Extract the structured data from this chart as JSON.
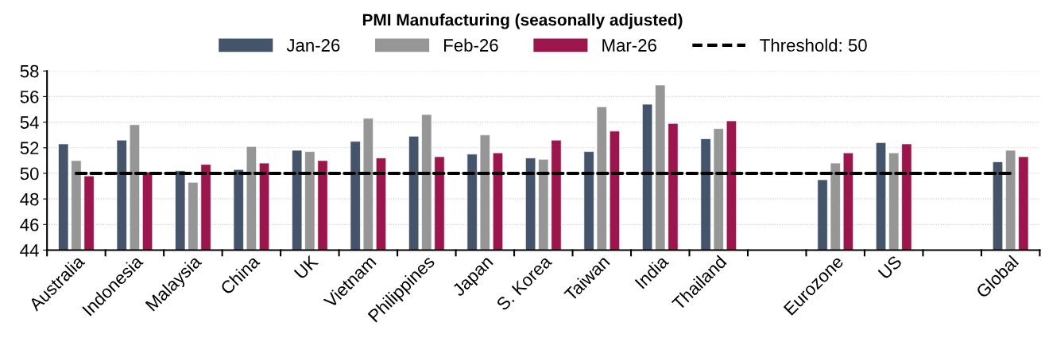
{
  "chart_data": {
    "type": "bar",
    "title": "PMI Manufacturing (seasonally adjusted)",
    "categories": [
      "Australia",
      "Indonesia",
      "Malaysia",
      "China",
      "UK",
      "Vietnam",
      "Philippines",
      "Japan",
      "S. Korea",
      "Taiwan",
      "India",
      "Thailand",
      null,
      "Eurozone",
      "US",
      null,
      "Global"
    ],
    "series": [
      {
        "name": "Jan-26",
        "color": "#44546a",
        "values": [
          52.3,
          52.6,
          50.2,
          50.3,
          51.8,
          52.5,
          52.9,
          51.5,
          51.2,
          51.7,
          55.4,
          52.7,
          null,
          49.5,
          52.4,
          null,
          50.9
        ]
      },
      {
        "name": "Feb-26",
        "color": "#969696",
        "values": [
          51.0,
          53.8,
          49.3,
          52.1,
          51.7,
          54.3,
          54.6,
          53.0,
          51.1,
          55.2,
          56.9,
          53.5,
          null,
          50.8,
          51.6,
          null,
          51.8
        ]
      },
      {
        "name": "Mar-26",
        "color": "#9b164c",
        "values": [
          49.8,
          50.1,
          50.7,
          50.8,
          51.0,
          51.2,
          51.3,
          51.6,
          52.6,
          53.3,
          53.9,
          54.1,
          null,
          51.6,
          52.3,
          null,
          51.3
        ]
      },
      {
        "name": "Threshold: 50",
        "type": "line",
        "color": "#000000",
        "line_style": "dashed",
        "values": [
          50,
          50,
          50,
          50,
          50,
          50,
          50,
          50,
          50,
          50,
          50,
          50,
          50,
          50,
          50,
          50,
          50
        ]
      }
    ],
    "ylim": [
      44,
      58
    ],
    "yticks": [
      44,
      46,
      48,
      50,
      52,
      54,
      56,
      58
    ],
    "grid": "y",
    "legend": "top"
  }
}
